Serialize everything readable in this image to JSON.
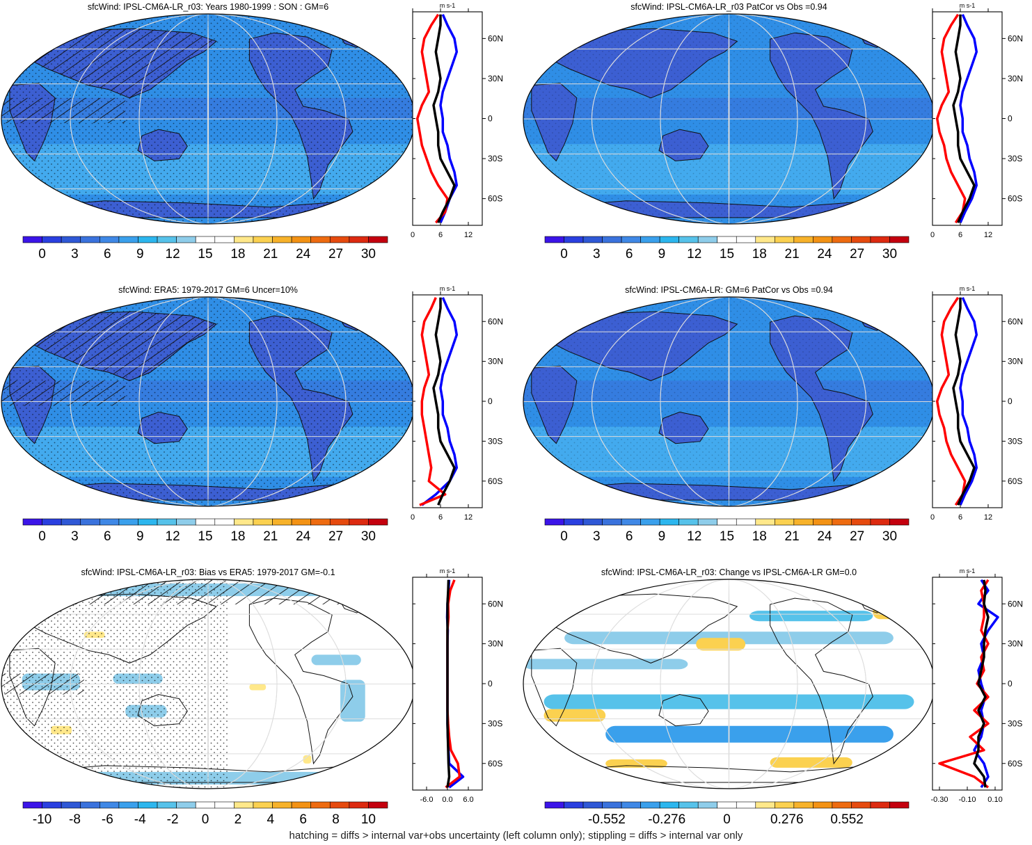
{
  "colors": {
    "scale_abs": [
      "#3b14e8",
      "#2a3fe0",
      "#2f58d6",
      "#3a72dd",
      "#3f88e6",
      "#3aa0ec",
      "#2cb6ee",
      "#56c2ea",
      "#8ecdea",
      "#ffffff",
      "#ffffff",
      "#ffe88a",
      "#fbd150",
      "#f7b22a",
      "#f39214",
      "#ee6b10",
      "#e64a0e",
      "#dd2a10",
      "#c4000e"
    ],
    "scale_bias": [
      "#3b14e8",
      "#2a3fe0",
      "#2f58d6",
      "#3a72dd",
      "#3f88e6",
      "#3aa0ec",
      "#2cb6ee",
      "#56c2ea",
      "#8ecdea",
      "#ffffff",
      "#ffffff",
      "#ffe88a",
      "#fbd150",
      "#f7b22a",
      "#f39214",
      "#ee6b10",
      "#e64a0e",
      "#dd2a10",
      "#c4000e"
    ],
    "land_blue": "#3c5fd2",
    "ocean_blue": "#2f8ee6",
    "southern_blue": "#43aaee",
    "line_model": "#0000ff",
    "line_obs": "#ff0000",
    "line_mean": "#000000"
  },
  "panels": [
    {
      "id": "model-climatology",
      "title": "sfcWind: IPSL-CM6A-LR_r03: Years 1980-1999 : SON : GM=6",
      "map_style": "abs",
      "colorbar_labels": [
        "0",
        "3",
        "6",
        "9",
        "12",
        "15",
        "18",
        "21",
        "24",
        "27",
        "30"
      ],
      "profile_xticks": [
        "0",
        "6",
        "12"
      ],
      "profile_unit": "m s-1"
    },
    {
      "id": "model-patcor",
      "title": "sfcWind: IPSL-CM6A-LR_r03 PatCor vs Obs =0.94",
      "map_style": "abs",
      "colorbar_labels": [
        "0",
        "3",
        "6",
        "9",
        "12",
        "15",
        "18",
        "21",
        "24",
        "27",
        "30"
      ],
      "profile_xticks": [
        "0",
        "6",
        "12"
      ],
      "profile_unit": "m s-1"
    },
    {
      "id": "obs-era5",
      "title": "sfcWind: ERA5: 1979-2017 GM=6 Uncer=10%",
      "map_style": "abs",
      "colorbar_labels": [
        "0",
        "3",
        "6",
        "9",
        "12",
        "15",
        "18",
        "21",
        "24",
        "27",
        "30"
      ],
      "profile_xticks": [
        "0",
        "6",
        "12"
      ],
      "profile_unit": "m s-1"
    },
    {
      "id": "ensemble-patcor",
      "title": "sfcWind: IPSL-CM6A-LR: GM=6 PatCor vs Obs =0.94",
      "map_style": "abs",
      "colorbar_labels": [
        "0",
        "3",
        "6",
        "9",
        "12",
        "15",
        "18",
        "21",
        "24",
        "27",
        "30"
      ],
      "profile_xticks": [
        "0",
        "6",
        "12"
      ],
      "profile_unit": "m s-1"
    },
    {
      "id": "bias-vs-era5",
      "title": "sfcWind: IPSL-CM6A-LR_r03: Bias vs ERA5: 1979-2017  GM=-0.1",
      "map_style": "bias",
      "colorbar_labels": [
        "-10",
        "-8",
        "-6",
        "-4",
        "-2",
        "0",
        "2",
        "4",
        "6",
        "8",
        "10"
      ],
      "profile_xticks": [
        "-6.0",
        "0.0",
        "6.0"
      ],
      "profile_unit": "m s-1"
    },
    {
      "id": "change-vs-ensemble",
      "title": "sfcWind: IPSL-CM6A-LR_r03: Change vs IPSL-CM6A-LR GM=0.0",
      "map_style": "change",
      "colorbar_labels": [
        "-0.552",
        "-0.276",
        "0",
        "0.276",
        "0.552"
      ],
      "profile_xticks": [
        "-0.30",
        "-0.10",
        "0.10"
      ],
      "profile_unit": "m s-1"
    }
  ],
  "lat_labels": [
    "60N",
    "30N",
    "0",
    "30S",
    "60S"
  ],
  "chart_data": [
    {
      "type": "line",
      "title": "sfcWind: IPSL-CM6A-LR_r03: Years 1980-1999 : SON : GM=6",
      "xlabel": "m s-1",
      "xlim": [
        0,
        15
      ],
      "ylim": [
        -80,
        80
      ],
      "y": [
        -78,
        -70,
        -60,
        -50,
        -40,
        -30,
        -20,
        -10,
        0,
        10,
        20,
        30,
        40,
        50,
        60,
        70,
        78
      ],
      "series": [
        {
          "values": [
            6,
            7,
            8,
            9.5,
            9,
            8,
            7.5,
            6.5,
            6.5,
            6,
            6.5,
            7.5,
            8.5,
            9.5,
            9,
            7.5,
            6.5
          ]
        },
        {
          "values": [
            5,
            7,
            7.5,
            5.5,
            4,
            3,
            2,
            1.5,
            1,
            2,
            3.5,
            3,
            2.5,
            2,
            2.5,
            4,
            5.5
          ]
        },
        {
          "values": [
            5.5,
            6.5,
            8,
            9,
            7.5,
            6,
            5.5,
            5.5,
            5,
            4.5,
            5.5,
            6,
            5.5,
            5,
            5.5,
            6,
            6
          ]
        }
      ]
    },
    {
      "type": "line",
      "title": "sfcWind: IPSL-CM6A-LR_r03 PatCor vs Obs =0.94",
      "xlabel": "m s-1",
      "xlim": [
        0,
        15
      ],
      "ylim": [
        -80,
        80
      ],
      "y": [
        -78,
        -70,
        -60,
        -50,
        -40,
        -30,
        -20,
        -10,
        0,
        10,
        20,
        30,
        40,
        50,
        60,
        70,
        78
      ],
      "series": [
        {
          "values": [
            6,
            7,
            8.5,
            9.5,
            9,
            8,
            7.5,
            6.5,
            6.5,
            6,
            6.5,
            7.5,
            8.5,
            9.5,
            9,
            7.5,
            6.5
          ]
        },
        {
          "values": [
            5,
            6.5,
            7,
            5.5,
            4,
            3,
            2.5,
            1.5,
            1,
            2,
            3.5,
            3,
            2.5,
            2,
            2.5,
            4,
            5.5
          ]
        },
        {
          "values": [
            5.5,
            6.5,
            8,
            9,
            7.5,
            6,
            5.5,
            5.5,
            5,
            4.5,
            5.5,
            6,
            5.5,
            5,
            5.5,
            6,
            6
          ]
        }
      ]
    },
    {
      "type": "line",
      "title": "sfcWind: ERA5: 1979-2017 GM=6 Uncer=10%",
      "xlabel": "m s-1",
      "xlim": [
        0,
        15
      ],
      "ylim": [
        -80,
        80
      ],
      "y": [
        -78,
        -70,
        -60,
        -50,
        -40,
        -30,
        -20,
        -10,
        0,
        10,
        20,
        30,
        40,
        50,
        60,
        70,
        78
      ],
      "series": [
        {
          "values": [
            2,
            5,
            8,
            9.5,
            9,
            8,
            7.5,
            6.5,
            6.5,
            6,
            6.5,
            7.5,
            8.5,
            9.5,
            9,
            7.5,
            6.5
          ]
        },
        {
          "values": [
            1.5,
            7,
            3.5,
            4,
            3.5,
            3,
            2.5,
            2,
            2,
            2.5,
            3.5,
            3,
            2.5,
            2,
            2.5,
            4,
            5
          ]
        },
        {
          "values": [
            5.5,
            6.5,
            8,
            9,
            7.5,
            6,
            5.5,
            5.5,
            5,
            4.5,
            5.5,
            6,
            5.5,
            5,
            5.5,
            6,
            6
          ]
        }
      ]
    },
    {
      "type": "line",
      "title": "sfcWind: IPSL-CM6A-LR: GM=6 PatCor vs Obs =0.94",
      "xlabel": "m s-1",
      "xlim": [
        0,
        15
      ],
      "ylim": [
        -80,
        80
      ],
      "y": [
        -78,
        -70,
        -60,
        -50,
        -40,
        -30,
        -20,
        -10,
        0,
        10,
        20,
        30,
        40,
        50,
        60,
        70,
        78
      ],
      "series": [
        {
          "values": [
            6,
            7,
            8.5,
            9.5,
            9,
            8,
            7.5,
            6.5,
            6.5,
            6,
            6.5,
            7.5,
            8.5,
            9.5,
            9,
            7.5,
            6.5
          ]
        },
        {
          "values": [
            5,
            6.5,
            7,
            5.5,
            4,
            3,
            2.5,
            1.5,
            1,
            2,
            3.5,
            3,
            2.5,
            2,
            2.5,
            4,
            5.5
          ]
        },
        {
          "values": [
            5.5,
            6.5,
            8,
            9,
            7.5,
            6,
            5.5,
            5.5,
            5,
            4.5,
            5.5,
            6,
            5.5,
            5,
            5.5,
            6,
            6
          ]
        }
      ]
    },
    {
      "type": "line",
      "title": "sfcWind: IPSL-CM6A-LR_r03: Bias vs ERA5: 1979-2017  GM=-0.1",
      "xlabel": "m s-1",
      "xlim": [
        -10,
        10
      ],
      "ylim": [
        -80,
        80
      ],
      "y": [
        -78,
        -70,
        -60,
        -50,
        -40,
        -30,
        -20,
        -10,
        0,
        10,
        20,
        30,
        40,
        50,
        60,
        70,
        78
      ],
      "series": [
        {
          "values": [
            0.5,
            4.5,
            0.5,
            0.3,
            0.1,
            0,
            0,
            0,
            0,
            0,
            0,
            0,
            0.1,
            -0.1,
            0,
            0.3,
            0.5
          ]
        },
        {
          "values": [
            -0.5,
            3.5,
            3,
            1,
            0.5,
            0.2,
            0,
            0,
            0,
            0,
            0,
            0,
            0,
            0.3,
            0.2,
            0.8,
            2
          ]
        },
        {
          "values": [
            0,
            0.5,
            0.3,
            0.2,
            0.1,
            0,
            0,
            0,
            0,
            0,
            0,
            0,
            0,
            0,
            0,
            0.2,
            0.3
          ]
        }
      ]
    },
    {
      "type": "line",
      "title": "sfcWind: IPSL-CM6A-LR_r03: Change vs IPSL-CM6A-LR GM=0.0",
      "xlabel": "m s-1",
      "xlim": [
        -0.35,
        0.15
      ],
      "ylim": [
        -80,
        80
      ],
      "y": [
        -78,
        -70,
        -60,
        -50,
        -40,
        -30,
        -20,
        -10,
        0,
        10,
        20,
        30,
        40,
        50,
        60,
        70,
        78
      ],
      "series": [
        {
          "values": [
            0,
            0.05,
            0.02,
            -0.05,
            0,
            0.02,
            0,
            0.03,
            0,
            -0.02,
            0.02,
            0,
            0.05,
            0.12,
            -0.02,
            0.05,
            0
          ]
        },
        {
          "values": [
            0.05,
            -0.05,
            -0.3,
            0.02,
            -0.08,
            0.05,
            -0.05,
            0.05,
            -0.03,
            0.02,
            0,
            0.05,
            0,
            0.02,
            0.02,
            0,
            0.05
          ]
        },
        {
          "values": [
            0.03,
            0.02,
            -0.05,
            -0.02,
            -0.02,
            0.02,
            -0.02,
            0.03,
            -0.02,
            0,
            0.02,
            0.02,
            0.03,
            0.05,
            0.02,
            0.03,
            0.02
          ]
        }
      ]
    }
  ],
  "footer": "hatching = diffs > internal var+obs uncertainty (left column only); stippling = diffs > internal var only"
}
